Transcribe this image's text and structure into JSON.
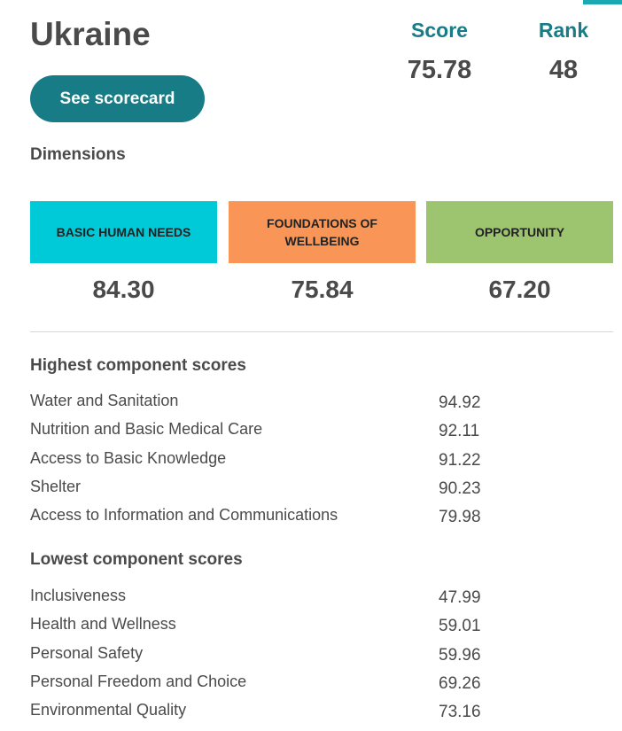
{
  "country": "Ukraine",
  "metrics": {
    "score_label": "Score",
    "score_value": "75.78",
    "rank_label": "Rank",
    "rank_value": "48"
  },
  "scorecard_button": "See scorecard",
  "dimensions": {
    "title": "Dimensions",
    "items": [
      {
        "label": "BASIC HUMAN NEEDS",
        "value": "84.30",
        "color": "#00c9d8"
      },
      {
        "label": "FOUNDATIONS OF WELLBEING",
        "value": "75.84",
        "color": "#f99556"
      },
      {
        "label": "OPPORTUNITY",
        "value": "67.20",
        "color": "#9dc46f"
      }
    ]
  },
  "highest": {
    "title": "Highest component scores",
    "items": [
      {
        "name": "Water and Sanitation",
        "score": "94.92"
      },
      {
        "name": "Nutrition and Basic Medical Care",
        "score": "92.11"
      },
      {
        "name": "Access to Basic Knowledge",
        "score": "91.22"
      },
      {
        "name": "Shelter",
        "score": "90.23"
      },
      {
        "name": "Access to Information and Communications",
        "score": "79.98"
      }
    ]
  },
  "lowest": {
    "title": "Lowest component scores",
    "items": [
      {
        "name": "Inclusiveness",
        "score": "47.99"
      },
      {
        "name": "Health and Wellness",
        "score": "59.01"
      },
      {
        "name": "Personal Safety",
        "score": "59.96"
      },
      {
        "name": "Personal Freedom and Choice",
        "score": "69.26"
      },
      {
        "name": "Environmental Quality",
        "score": "73.16"
      }
    ]
  },
  "colors": {
    "accent": "#177c86",
    "text": "#4a4a4a"
  }
}
